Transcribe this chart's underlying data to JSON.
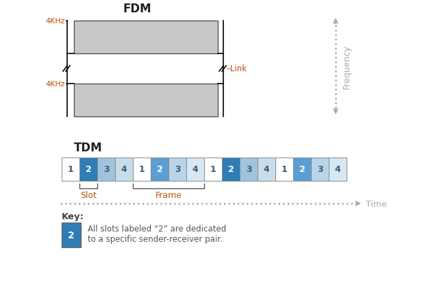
{
  "fdm_title": "FDM",
  "tdm_title": "TDM",
  "fdm_bar_color": "#c8c8c8",
  "fdm_bar_edge": "#555555",
  "fdm_label_4khz": "4KHz",
  "fdm_link_label": "Link",
  "fdm_freq_label": "Frequency",
  "slot_color_1": "#ffffff",
  "slot_color_2_dark": "#2e7db5",
  "slot_color_2_medium": "#5b9fd4",
  "slot_color_3_dark": "#a0c4de",
  "slot_color_3_medium": "#b8d4e8",
  "slot_color_4_dark": "#c8dcea",
  "slot_color_4_medium": "#d8e8f2",
  "tdm_sequence": [
    1,
    2,
    3,
    4,
    1,
    2,
    3,
    4,
    1,
    2,
    3,
    4,
    1,
    2,
    3,
    4
  ],
  "frame_shade": [
    0,
    0,
    1,
    1
  ],
  "tdm_slot_label": "Slot",
  "tdm_frame_label": "Frame",
  "tdm_time_label": "Time",
  "key_label": "Key:",
  "key_text_line1": "All slots labeled “2” are dedicated",
  "key_text_line2": "to a specific sender-receiver pair.",
  "color_link": "#c05010",
  "color_freq_arrow": "#aaaaaa",
  "color_time_arrow": "#aaaaaa",
  "color_bracket_label": "#c05010",
  "bg_color": "#ffffff",
  "title_color": "#000000",
  "label_color": "#444444",
  "fdm_title_color": "#222222",
  "tdm_title_color": "#222222"
}
